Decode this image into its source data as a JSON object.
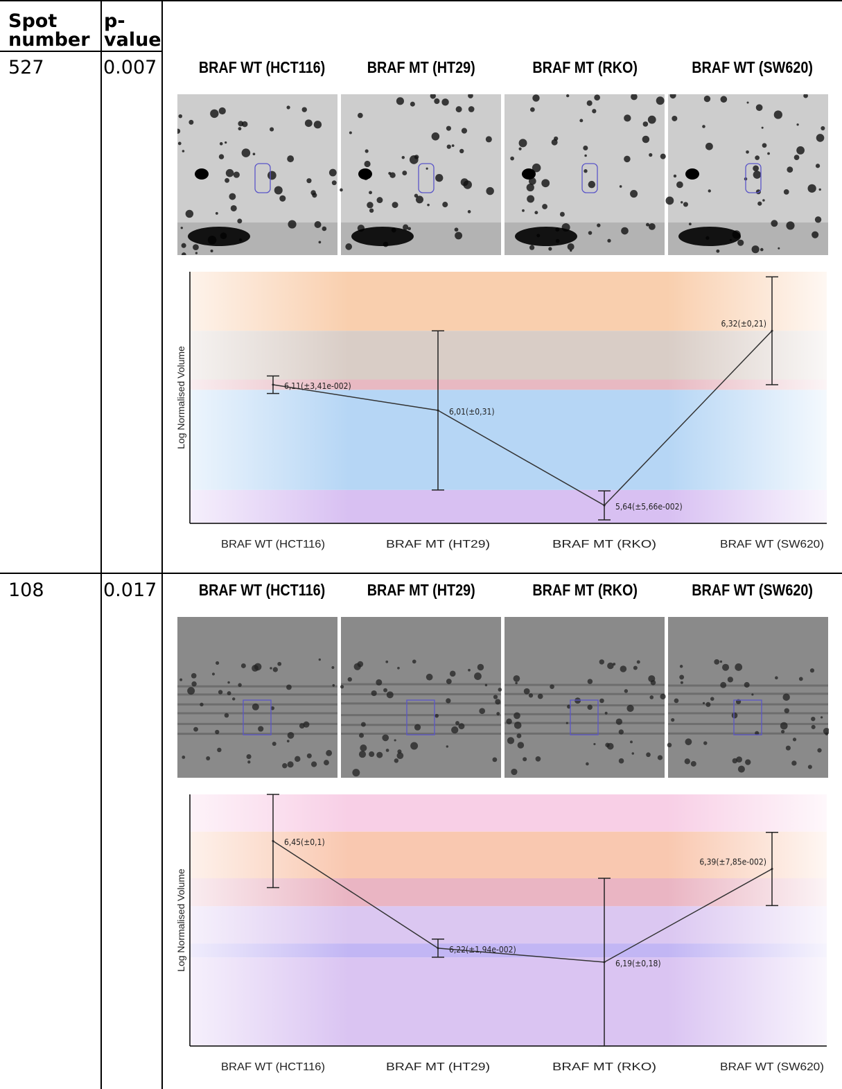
{
  "table": {
    "headers": {
      "spot": [
        "Spot",
        "number"
      ],
      "pvalue": [
        "p-",
        "value"
      ]
    },
    "rows": [
      {
        "spot_number": "527",
        "p_value": "0.007"
      },
      {
        "spot_number": "108",
        "p_value": "0.017"
      }
    ]
  },
  "panels": [
    {
      "gel_titles": [
        "BRAF WT (HCT116)",
        "BRAF MT (HT29)",
        "BRAF MT (RKO)",
        "BRAF WT (SW620)"
      ],
      "gel_style": "light-background spots, outlined target spot"
    },
    {
      "gel_titles": [
        "BRAF WT (HCT116)",
        "BRAF MT (HT29)",
        "BRAF MT (RKO)",
        "BRAF WT (SW620)"
      ],
      "gel_style": "dark-background spots, outlined target spot"
    }
  ],
  "chart_data": [
    {
      "type": "line",
      "ylabel": "Log Normalised Volume",
      "categories": [
        "BRAF WT (HCT116)",
        "BRAF MT (HT29)",
        "BRAF MT (RKO)",
        "BRAF WT (SW620)"
      ],
      "values": [
        6.11,
        6.01,
        5.64,
        6.32
      ],
      "errors": [
        0.0341,
        0.31,
        0.0566,
        0.21
      ],
      "point_labels": [
        "6,11(±3,41e-002)",
        "6,01(±0,31)",
        "5,64(±5,66e-002)",
        "6,32(±0,21)"
      ],
      "ylim": [
        5.57,
        6.55
      ],
      "grid": false,
      "bands": [
        {
          "from": 6.32,
          "to": 6.55,
          "color": "#f9cfae"
        },
        {
          "from": 6.11,
          "to": 6.32,
          "color": "#d9cdc6"
        },
        {
          "from": 6.09,
          "to": 6.13,
          "color": "#e8b9c2"
        },
        {
          "from": 5.7,
          "to": 6.09,
          "color": "#b6d6f5"
        },
        {
          "from": 5.57,
          "to": 5.7,
          "color": "#d8c0f2"
        }
      ]
    },
    {
      "type": "line",
      "ylabel": "Log Normalised Volume",
      "categories": [
        "BRAF WT (HCT116)",
        "BRAF MT (HT29)",
        "BRAF MT (RKO)",
        "BRAF WT (SW620)"
      ],
      "values": [
        6.45,
        6.22,
        6.19,
        6.39
      ],
      "errors": [
        0.1,
        0.0194,
        0.18,
        0.0785
      ],
      "point_labels": [
        "6,45(±0,1)",
        "6,22(±1,94e-002)",
        "6,19(±0,18)",
        "6,39(±7,85e-002)"
      ],
      "ylim": [
        6.01,
        6.55
      ],
      "grid": false,
      "bands": [
        {
          "from": 6.47,
          "to": 6.55,
          "color": "#f8cfe6"
        },
        {
          "from": 6.37,
          "to": 6.47,
          "color": "#f9c8b0"
        },
        {
          "from": 6.31,
          "to": 6.37,
          "color": "#eab5c3"
        },
        {
          "from": 6.23,
          "to": 6.31,
          "color": "#dbc7f1"
        },
        {
          "from": 6.2,
          "to": 6.23,
          "color": "#c2b6f4"
        },
        {
          "from": 6.01,
          "to": 6.2,
          "color": "#dac4f2"
        }
      ]
    }
  ]
}
